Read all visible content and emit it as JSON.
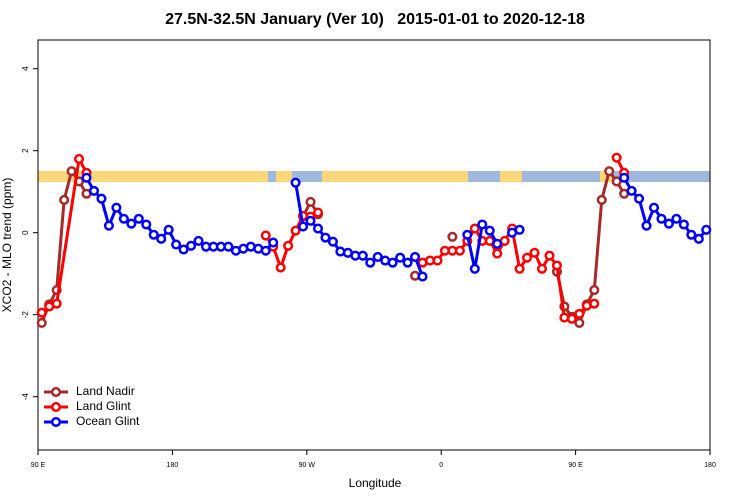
{
  "chart_data": {
    "type": "line",
    "title": "27.5N-32.5N January (Ver 10)   2015-01-01 to 2020-12-18",
    "x_label": "Longitude",
    "y_label": "XCO2 - MLO trend (ppm)",
    "xlim": [
      90,
      540
    ],
    "ylim": [
      -5.3,
      4.7
    ],
    "xticks": [
      {
        "value": 90,
        "label": "90 E"
      },
      180,
      {
        "value": 270,
        "label": "90 W"
      },
      {
        "value": 360,
        "label": "0"
      },
      {
        "value": 450,
        "label": "90 E"
      },
      {
        "value": 540,
        "label": "180"
      }
    ],
    "yticks": [
      -4,
      -2,
      0,
      2,
      4
    ],
    "legend": "bottomleft",
    "series": [
      {
        "name": "Land Nadir",
        "color": "#a52a2a",
        "x": [
          92.5,
          97.5,
          102.5,
          107.5,
          112.5,
          117.5,
          122.5,
          200,
          267.5,
          272.5,
          277.5,
          310,
          342.5,
          355,
          367.5,
          400,
          437.5,
          442.5,
          447.5,
          452.5,
          457.5,
          462.5,
          467.5,
          472.5,
          477.5,
          482.5
        ],
        "values": [
          -2.2,
          -1.75,
          -1.4,
          0.8,
          1.5,
          1.25,
          0.95,
          null,
          0.4,
          0.75,
          0.45,
          null,
          -1.05,
          null,
          -0.1,
          null,
          -0.95,
          -1.8,
          -2.05,
          -2.2,
          -1.75,
          -1.4,
          0.8,
          1.5,
          1.25,
          0.95
        ]
      },
      {
        "name": "Land Glint",
        "color": "#ff0000",
        "x": [
          92.5,
          97.5,
          102.5,
          117.5,
          122.5,
          200,
          242.5,
          247.5,
          252.5,
          257.5,
          262.5,
          267.5,
          272.5,
          277.5,
          310,
          347.5,
          352.5,
          357.5,
          362.5,
          367.5,
          372.5,
          377.5,
          382.5,
          387.5,
          392.5,
          397.5,
          402.5,
          407.5,
          412.5,
          417.5,
          422.5,
          427.5,
          432.5,
          437.5,
          442.5,
          447.5,
          452.5,
          457.5,
          462.5,
          470,
          477.5,
          482.5
        ],
        "values": [
          -1.95,
          -1.8,
          -1.73,
          1.8,
          1.46,
          null,
          -0.07,
          -0.34,
          -0.85,
          -0.32,
          0.05,
          0.41,
          0.39,
          0.49,
          null,
          -0.73,
          -0.68,
          -0.68,
          -0.44,
          -0.44,
          -0.44,
          -0.2,
          0.1,
          -0.2,
          -0.2,
          -0.51,
          -0.2,
          0.1,
          -0.88,
          -0.61,
          -0.49,
          -0.88,
          -0.56,
          -0.8,
          -2.07,
          -2.1,
          -1.98,
          -1.78,
          -1.73,
          null,
          1.83,
          1.46
        ]
      },
      {
        "name": "Ocean Glint",
        "color": "#0000ff",
        "x": [
          122.5,
          127.5,
          132.5,
          137.5,
          142.5,
          147.5,
          152.5,
          157.5,
          162.5,
          167.5,
          172.5,
          177.5,
          182.5,
          187.5,
          192.5,
          197.5,
          202.5,
          207.5,
          212.5,
          217.5,
          222.5,
          227.5,
          232.5,
          237.5,
          242.5,
          247.5,
          255,
          262.5,
          267.5,
          272.5,
          277.5,
          282.5,
          287.5,
          292.5,
          297.5,
          302.5,
          307.5,
          312.5,
          317.5,
          322.5,
          327.5,
          332.5,
          337.5,
          342.5,
          347.5,
          360,
          377.5,
          382.5,
          387.5,
          392.5,
          397.5,
          402.5,
          407.5,
          412.5,
          440,
          482.5,
          487.5,
          492.5,
          497.5,
          502.5,
          507.5,
          512.5,
          517.5,
          522.5,
          527.5,
          532.5,
          537.5
        ],
        "values": [
          1.34,
          1.02,
          0.83,
          0.17,
          0.61,
          0.34,
          0.22,
          0.34,
          0.2,
          -0.05,
          -0.15,
          0.07,
          -0.29,
          -0.41,
          -0.32,
          -0.2,
          -0.34,
          -0.34,
          -0.34,
          -0.34,
          -0.44,
          -0.39,
          -0.34,
          -0.39,
          -0.44,
          -0.24,
          null,
          1.22,
          0.15,
          0.29,
          0.1,
          -0.12,
          -0.22,
          -0.46,
          -0.49,
          -0.56,
          -0.56,
          -0.73,
          -0.59,
          -0.68,
          -0.73,
          -0.61,
          -0.73,
          -0.59,
          -1.07,
          null,
          -0.05,
          -0.88,
          0.2,
          0.05,
          -0.27,
          null,
          0,
          0.07,
          null,
          1.34,
          1.02,
          0.83,
          0.17,
          0.61,
          0.34,
          0.22,
          0.34,
          0.2,
          -0.05,
          -0.15,
          0.07
        ]
      }
    ]
  }
}
